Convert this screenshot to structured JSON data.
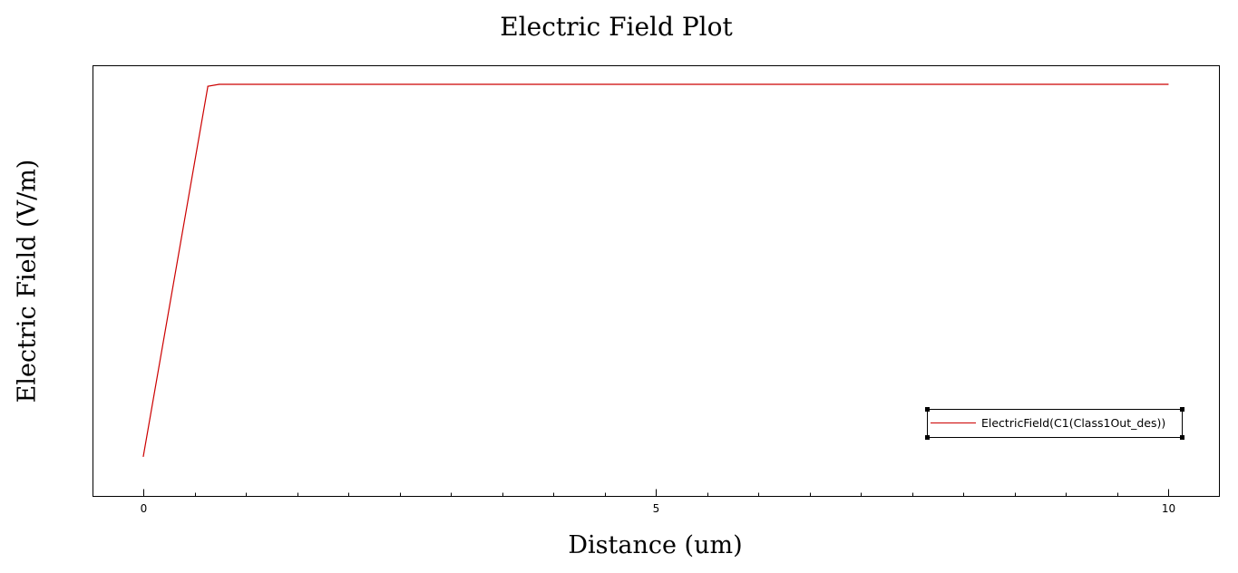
{
  "chart_data": {
    "type": "line",
    "title": "Electric Field Plot",
    "xlabel": "Distance (um)",
    "ylabel": "Electric Field (V/m)",
    "xlim": [
      -0.5,
      10.5
    ],
    "ylim": [
      0,
      1
    ],
    "x_tick_labels": [
      "0",
      "5",
      "10"
    ],
    "x_ticks": [
      0,
      5,
      10
    ],
    "x_minor_ticks": [
      0.5,
      1,
      1.5,
      2,
      2.5,
      3,
      3.5,
      4,
      4.5,
      5.5,
      6,
      6.5,
      7,
      7.5,
      8,
      8.5,
      9,
      9.5
    ],
    "y_tick_labels": [],
    "grid": false,
    "legend_position": "bottom-right",
    "series": [
      {
        "name": "ElectricField(C1(Class1Out_des))",
        "color": "#cc0000",
        "x": [
          0,
          0.63,
          0.74,
          10
        ],
        "y": [
          0.05,
          0.995,
          1.0,
          1.0
        ]
      }
    ]
  }
}
